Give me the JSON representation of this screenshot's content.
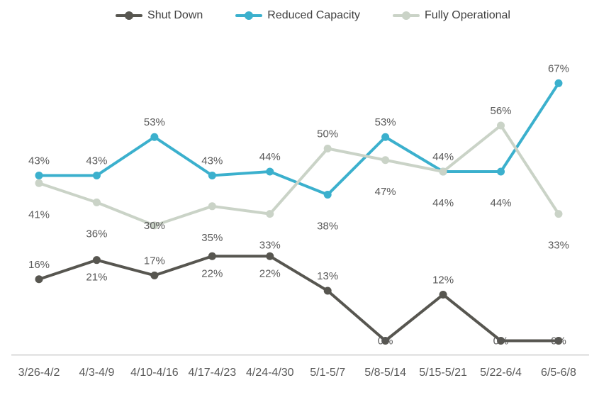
{
  "chart_data": {
    "type": "line",
    "title": "",
    "xlabel": "",
    "ylabel": "",
    "categories": [
      "3/26-4/2",
      "4/3-4/9",
      "4/10-4/16",
      "4/17-4/23",
      "4/24-4/30",
      "5/1-5/7",
      "5/8-5/14",
      "5/15-5/21",
      "5/22-6/4",
      "6/5-6/8"
    ],
    "series": [
      {
        "name": "Shut Down",
        "color": "#575650",
        "values": [
          16,
          21,
          17,
          22,
          22,
          13,
          0,
          12,
          0,
          0
        ],
        "labels": [
          "16%",
          "21%",
          "17%",
          "22%",
          "22%",
          "13%",
          "0%",
          "12%",
          "0%",
          "0%"
        ],
        "label_side": [
          "above",
          "below",
          "above",
          "below",
          "below",
          "above",
          "on",
          "above",
          "on",
          "on"
        ]
      },
      {
        "name": "Reduced Capacity",
        "color": "#3BB0CD",
        "values": [
          43,
          43,
          53,
          43,
          44,
          38,
          53,
          44,
          44,
          67
        ],
        "labels": [
          "43%",
          "43%",
          "53%",
          "43%",
          "44%",
          "38%",
          "53%",
          "44%",
          "44%",
          "67%"
        ],
        "label_side": [
          "above",
          "above",
          "above",
          "above",
          "above",
          "below",
          "above",
          "above",
          "below",
          "above"
        ]
      },
      {
        "name": "Fully Operational",
        "color": "#CAD3C7",
        "values": [
          41,
          36,
          30,
          35,
          33,
          50,
          47,
          44,
          56,
          33
        ],
        "labels": [
          "41%",
          "36%",
          "30%",
          "35%",
          "33%",
          "50%",
          "47%",
          "44%",
          "56%",
          "33%"
        ],
        "label_side": [
          "below",
          "below",
          "on",
          "below",
          "below",
          "above",
          "below",
          "below",
          "above",
          "below"
        ]
      }
    ],
    "ylim": [
      0,
      70
    ],
    "grid": false,
    "legend_position": "top-center",
    "data_labels": true,
    "label_color": "#595959",
    "legend_text_color": "#404040",
    "axis_line_color": "#D9D9D9",
    "background_color": "#FFFFFF"
  }
}
